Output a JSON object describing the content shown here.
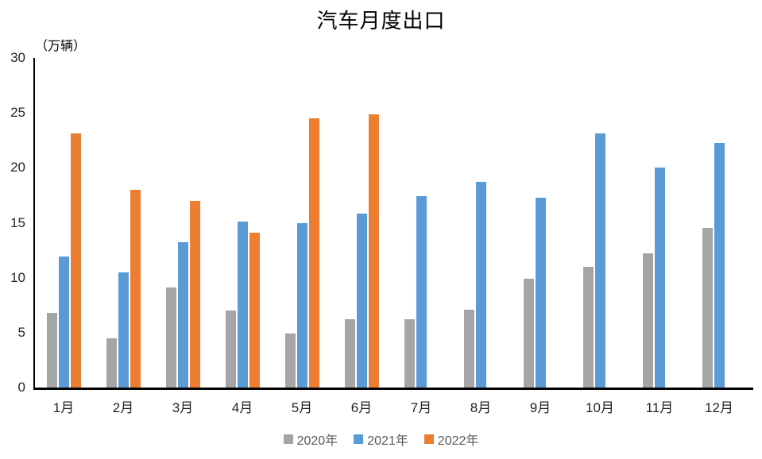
{
  "chart_data": {
    "type": "bar",
    "title": "汽车月度出口",
    "unit_label": "（万辆）",
    "categories": [
      "1月",
      "2月",
      "3月",
      "4月",
      "5月",
      "6月",
      "7月",
      "8月",
      "9月",
      "10月",
      "11月",
      "12月"
    ],
    "series": [
      {
        "name": "2020年",
        "color": "#A5A5A5",
        "values": [
          6.8,
          4.5,
          9.1,
          7.0,
          4.9,
          6.2,
          6.2,
          7.1,
          9.9,
          11.0,
          12.2,
          14.5
        ]
      },
      {
        "name": "2021年",
        "color": "#5B9BD5",
        "values": [
          11.9,
          10.5,
          13.2,
          15.1,
          15.0,
          15.8,
          17.4,
          18.7,
          17.3,
          23.1,
          20.0,
          22.3
        ]
      },
      {
        "name": "2022年",
        "color": "#ED7D31",
        "values": [
          23.1,
          18.0,
          17.0,
          14.1,
          24.5,
          24.9,
          null,
          null,
          null,
          null,
          null,
          null
        ]
      }
    ],
    "y_axis": {
      "min": 0,
      "max": 30,
      "tick_interval": 5,
      "ticks": [
        0,
        5,
        10,
        15,
        20,
        25,
        30
      ]
    },
    "legend_position": "bottom",
    "grid": false,
    "axis_color": "#000000",
    "tick_label_color": "#262626",
    "legend_text_color": "#595959"
  }
}
